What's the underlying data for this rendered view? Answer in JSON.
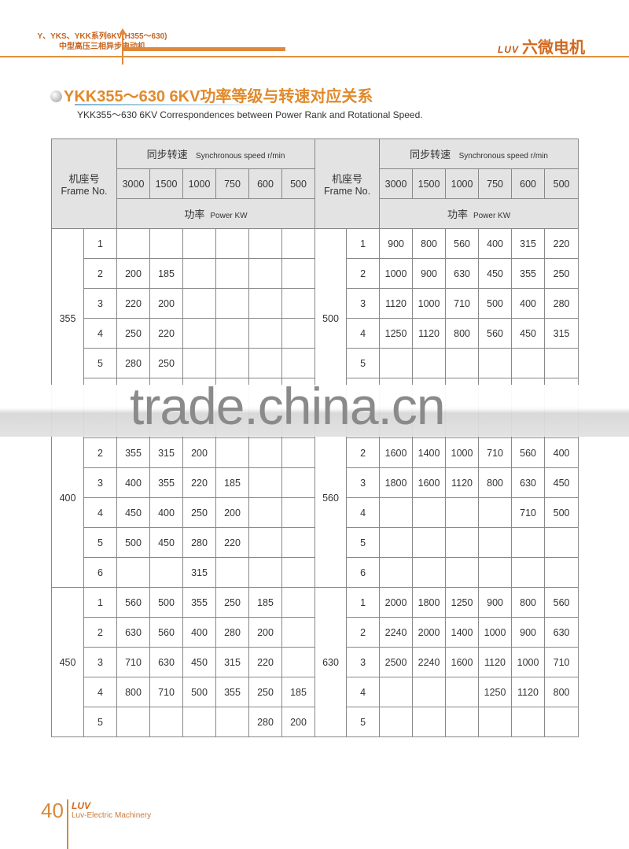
{
  "header": {
    "series_line1": "Y、YKS、YKK系列6KV(H355～630)",
    "series_line2": "中型高压三相异步电动机",
    "brand_logo": "LUV",
    "brand_name": "六微电机",
    "accent_color": "#e0883a"
  },
  "title": {
    "main": "YKK355～630 6KV功率等级与转速对应关系",
    "sub": "YKK355～630 6KV Correspondences between Power Rank and Rotational Speed."
  },
  "table": {
    "frame_cn": "机座号",
    "frame_en": "Frame No.",
    "speed_cn": "同步转速",
    "speed_en": "Synchronous speed  r/min",
    "speeds": [
      "3000",
      "1500",
      "1000",
      "750",
      "600",
      "500"
    ],
    "power_cn": "功率",
    "power_en": "Power  KW",
    "left_groups": [
      {
        "frame": "355",
        "rows": [
          {
            "no": "1",
            "values": [
              "",
              "",
              "",
              "",
              "",
              ""
            ]
          },
          {
            "no": "2",
            "values": [
              "200",
              "185",
              "",
              "",
              "",
              ""
            ]
          },
          {
            "no": "3",
            "values": [
              "220",
              "200",
              "",
              "",
              "",
              ""
            ]
          },
          {
            "no": "4",
            "values": [
              "250",
              "220",
              "",
              "",
              "",
              ""
            ]
          },
          {
            "no": "5",
            "values": [
              "280",
              "250",
              "",
              "",
              "",
              ""
            ]
          },
          {
            "no": "",
            "values": [
              "",
              "",
              "",
              "",
              "",
              ""
            ]
          }
        ]
      },
      {
        "frame": "400",
        "rows": [
          {
            "no": "",
            "values": [
              "",
              "",
              "",
              "",
              "",
              ""
            ]
          },
          {
            "no": "2",
            "values": [
              "355",
              "315",
              "200",
              "",
              "",
              ""
            ]
          },
          {
            "no": "3",
            "values": [
              "400",
              "355",
              "220",
              "185",
              "",
              ""
            ]
          },
          {
            "no": "4",
            "values": [
              "450",
              "400",
              "250",
              "200",
              "",
              ""
            ]
          },
          {
            "no": "5",
            "values": [
              "500",
              "450",
              "280",
              "220",
              "",
              ""
            ]
          },
          {
            "no": "6",
            "values": [
              "",
              "",
              "315",
              "",
              "",
              ""
            ]
          }
        ]
      },
      {
        "frame": "450",
        "rows": [
          {
            "no": "1",
            "values": [
              "560",
              "500",
              "355",
              "250",
              "185",
              ""
            ]
          },
          {
            "no": "2",
            "values": [
              "630",
              "560",
              "400",
              "280",
              "200",
              ""
            ]
          },
          {
            "no": "3",
            "values": [
              "710",
              "630",
              "450",
              "315",
              "220",
              ""
            ]
          },
          {
            "no": "4",
            "values": [
              "800",
              "710",
              "500",
              "355",
              "250",
              "185"
            ]
          },
          {
            "no": "5",
            "values": [
              "",
              "",
              "",
              "",
              "280",
              "200"
            ]
          }
        ]
      }
    ],
    "right_groups": [
      {
        "frame": "500",
        "rows": [
          {
            "no": "1",
            "values": [
              "900",
              "800",
              "560",
              "400",
              "315",
              "220"
            ]
          },
          {
            "no": "2",
            "values": [
              "1000",
              "900",
              "630",
              "450",
              "355",
              "250"
            ]
          },
          {
            "no": "3",
            "values": [
              "1120",
              "1000",
              "710",
              "500",
              "400",
              "280"
            ]
          },
          {
            "no": "4",
            "values": [
              "1250",
              "1120",
              "800",
              "560",
              "450",
              "315"
            ]
          },
          {
            "no": "5",
            "values": [
              "",
              "",
              "",
              "",
              "",
              ""
            ]
          },
          {
            "no": "",
            "values": [
              "",
              "",
              "",
              "",
              "",
              ""
            ]
          }
        ]
      },
      {
        "frame": "560",
        "rows": [
          {
            "no": "",
            "values": [
              "",
              "",
              "",
              "",
              "",
              ""
            ]
          },
          {
            "no": "2",
            "values": [
              "1600",
              "1400",
              "1000",
              "710",
              "560",
              "400"
            ]
          },
          {
            "no": "3",
            "values": [
              "1800",
              "1600",
              "1120",
              "800",
              "630",
              "450"
            ]
          },
          {
            "no": "4",
            "values": [
              "",
              "",
              "",
              "",
              "710",
              "500"
            ]
          },
          {
            "no": "5",
            "values": [
              "",
              "",
              "",
              "",
              "",
              ""
            ]
          },
          {
            "no": "6",
            "values": [
              "",
              "",
              "",
              "",
              "",
              ""
            ]
          }
        ]
      },
      {
        "frame": "630",
        "rows": [
          {
            "no": "1",
            "values": [
              "2000",
              "1800",
              "1250",
              "900",
              "800",
              "560"
            ]
          },
          {
            "no": "2",
            "values": [
              "2240",
              "2000",
              "1400",
              "1000",
              "900",
              "630"
            ]
          },
          {
            "no": "3",
            "values": [
              "2500",
              "2240",
              "1600",
              "1120",
              "1000",
              "710"
            ]
          },
          {
            "no": "4",
            "values": [
              "",
              "",
              "",
              "1250",
              "1120",
              "800"
            ]
          },
          {
            "no": "5",
            "values": [
              "",
              "",
              "",
              "",
              "",
              ""
            ]
          }
        ]
      }
    ]
  },
  "watermark": "trade.china.cn",
  "footer": {
    "page_number": "40",
    "logo": "LUV",
    "brand": "Luv-Electric Machinery"
  }
}
